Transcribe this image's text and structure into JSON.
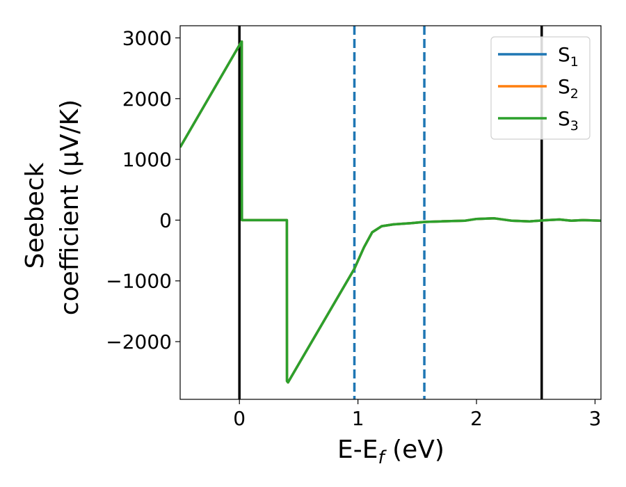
{
  "chart_data": {
    "type": "line",
    "xlabel_main": "E-E",
    "xlabel_sub": "f",
    "xlabel_unit": " (eV)",
    "ylabel_line1": "Seebeck",
    "ylabel_line2": "coefficient  (μV/K)",
    "xlim": [
      -0.5,
      3.05
    ],
    "ylim": [
      -2950,
      3200
    ],
    "xticks": [
      0,
      1,
      2,
      3
    ],
    "xtick_labels": [
      "0",
      "1",
      "2",
      "3"
    ],
    "yticks": [
      3000,
      2000,
      1000,
      0,
      -1000,
      -2000
    ],
    "ytick_labels": [
      "3000",
      "2000",
      "1000",
      "0",
      "−1000",
      "−2000"
    ],
    "grid": false,
    "legend_position": "top-right",
    "vlines": [
      {
        "x": 0.0,
        "style": "solid",
        "color": "#000000"
      },
      {
        "x": 0.97,
        "style": "dashed",
        "color": "#1f77b4"
      },
      {
        "x": 1.56,
        "style": "dashed",
        "color": "#1f77b4"
      },
      {
        "x": 2.55,
        "style": "solid",
        "color": "#000000"
      }
    ],
    "series": [
      {
        "name": "S",
        "sub": "1",
        "color": "#1f77b4",
        "x": [
          -0.5,
          0.0,
          0.02,
          0.021,
          0.03,
          0.4,
          0.401,
          0.41,
          0.97,
          1.05,
          1.12,
          1.2,
          1.3,
          1.45,
          1.56,
          1.7,
          1.9,
          2.0,
          2.15,
          2.3,
          2.45,
          2.6,
          2.7,
          2.8,
          2.9,
          3.05
        ],
        "y": [
          1200,
          2880,
          2940,
          0,
          0,
          0,
          -2650,
          -2670,
          -800,
          -450,
          -200,
          -100,
          -70,
          -50,
          -30,
          -20,
          -10,
          20,
          30,
          -10,
          -20,
          0,
          10,
          -10,
          0,
          -10
        ]
      },
      {
        "name": "S",
        "sub": "2",
        "color": "#ff7f0e",
        "x": [
          -0.5,
          0.0,
          0.02,
          0.021,
          0.03,
          0.4,
          0.401,
          0.41,
          0.97,
          1.05,
          1.12,
          1.2,
          1.3,
          1.45,
          1.56,
          1.7,
          1.9,
          2.0,
          2.15,
          2.3,
          2.45,
          2.6,
          2.7,
          2.8,
          2.9,
          3.05
        ],
        "y": [
          1200,
          2880,
          2940,
          0,
          0,
          0,
          -2650,
          -2670,
          -800,
          -450,
          -200,
          -100,
          -70,
          -50,
          -30,
          -20,
          -10,
          20,
          30,
          -10,
          -20,
          0,
          10,
          -10,
          0,
          -10
        ]
      },
      {
        "name": "S",
        "sub": "3",
        "color": "#2ca02c",
        "x": [
          -0.5,
          0.0,
          0.02,
          0.021,
          0.03,
          0.4,
          0.401,
          0.41,
          0.97,
          1.05,
          1.12,
          1.2,
          1.3,
          1.45,
          1.56,
          1.7,
          1.9,
          2.0,
          2.15,
          2.3,
          2.45,
          2.6,
          2.7,
          2.8,
          2.9,
          3.05
        ],
        "y": [
          1200,
          2880,
          2940,
          0,
          0,
          0,
          -2650,
          -2670,
          -800,
          -450,
          -200,
          -100,
          -70,
          -50,
          -30,
          -20,
          -10,
          20,
          30,
          -10,
          -20,
          0,
          10,
          -10,
          0,
          -10
        ]
      }
    ]
  }
}
